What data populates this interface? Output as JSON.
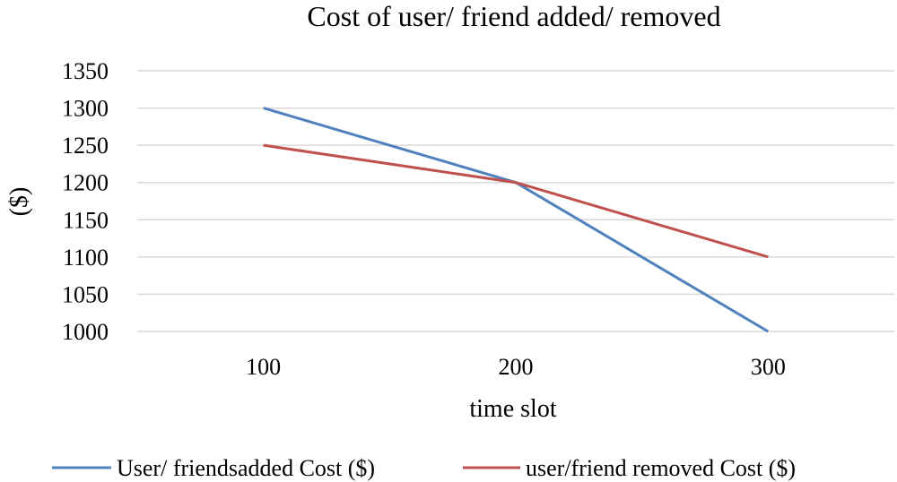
{
  "chart_data": {
    "type": "line",
    "title": "Cost of user/ friend added/ removed",
    "xlabel": "time slot",
    "ylabel": "($)",
    "categories": [
      "100",
      "200",
      "300"
    ],
    "ylim": [
      1000,
      1350
    ],
    "yticks": [
      1000,
      1050,
      1100,
      1150,
      1200,
      1250,
      1300,
      1350
    ],
    "grid": true,
    "legend_position": "bottom",
    "series": [
      {
        "name": "User/ friendsadded Cost ($)",
        "values": [
          1300,
          1200,
          1000
        ],
        "color": "#4f81bd"
      },
      {
        "name": "user/friend removed Cost ($)",
        "values": [
          1250,
          1200,
          1100
        ],
        "color": "#c0504d"
      }
    ]
  }
}
